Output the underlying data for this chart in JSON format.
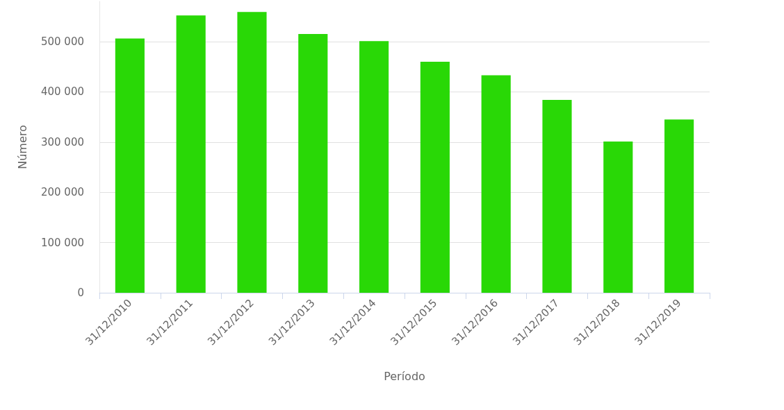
{
  "chart_data": {
    "type": "bar",
    "xlabel": "Período",
    "ylabel": "Número",
    "categories": [
      "31/12/2010",
      "31/12/2011",
      "31/12/2012",
      "31/12/2013",
      "31/12/2014",
      "31/12/2015",
      "31/12/2016",
      "31/12/2017",
      "31/12/2018",
      "31/12/2019"
    ],
    "values": [
      506000,
      552000,
      559000,
      515000,
      501000,
      460000,
      433000,
      384000,
      301000,
      345000
    ],
    "color": "#29d806",
    "ylim": [
      0,
      580000
    ],
    "yticks": [
      0,
      {
        "value": 100000,
        "label": "100 000"
      },
      {
        "value": 200000,
        "label": "200 000"
      },
      {
        "value": 300000,
        "label": "300 000"
      },
      {
        "value": 400000,
        "label": "400 000"
      },
      {
        "value": 500000,
        "label": "500 000"
      }
    ],
    "grid": "y"
  }
}
